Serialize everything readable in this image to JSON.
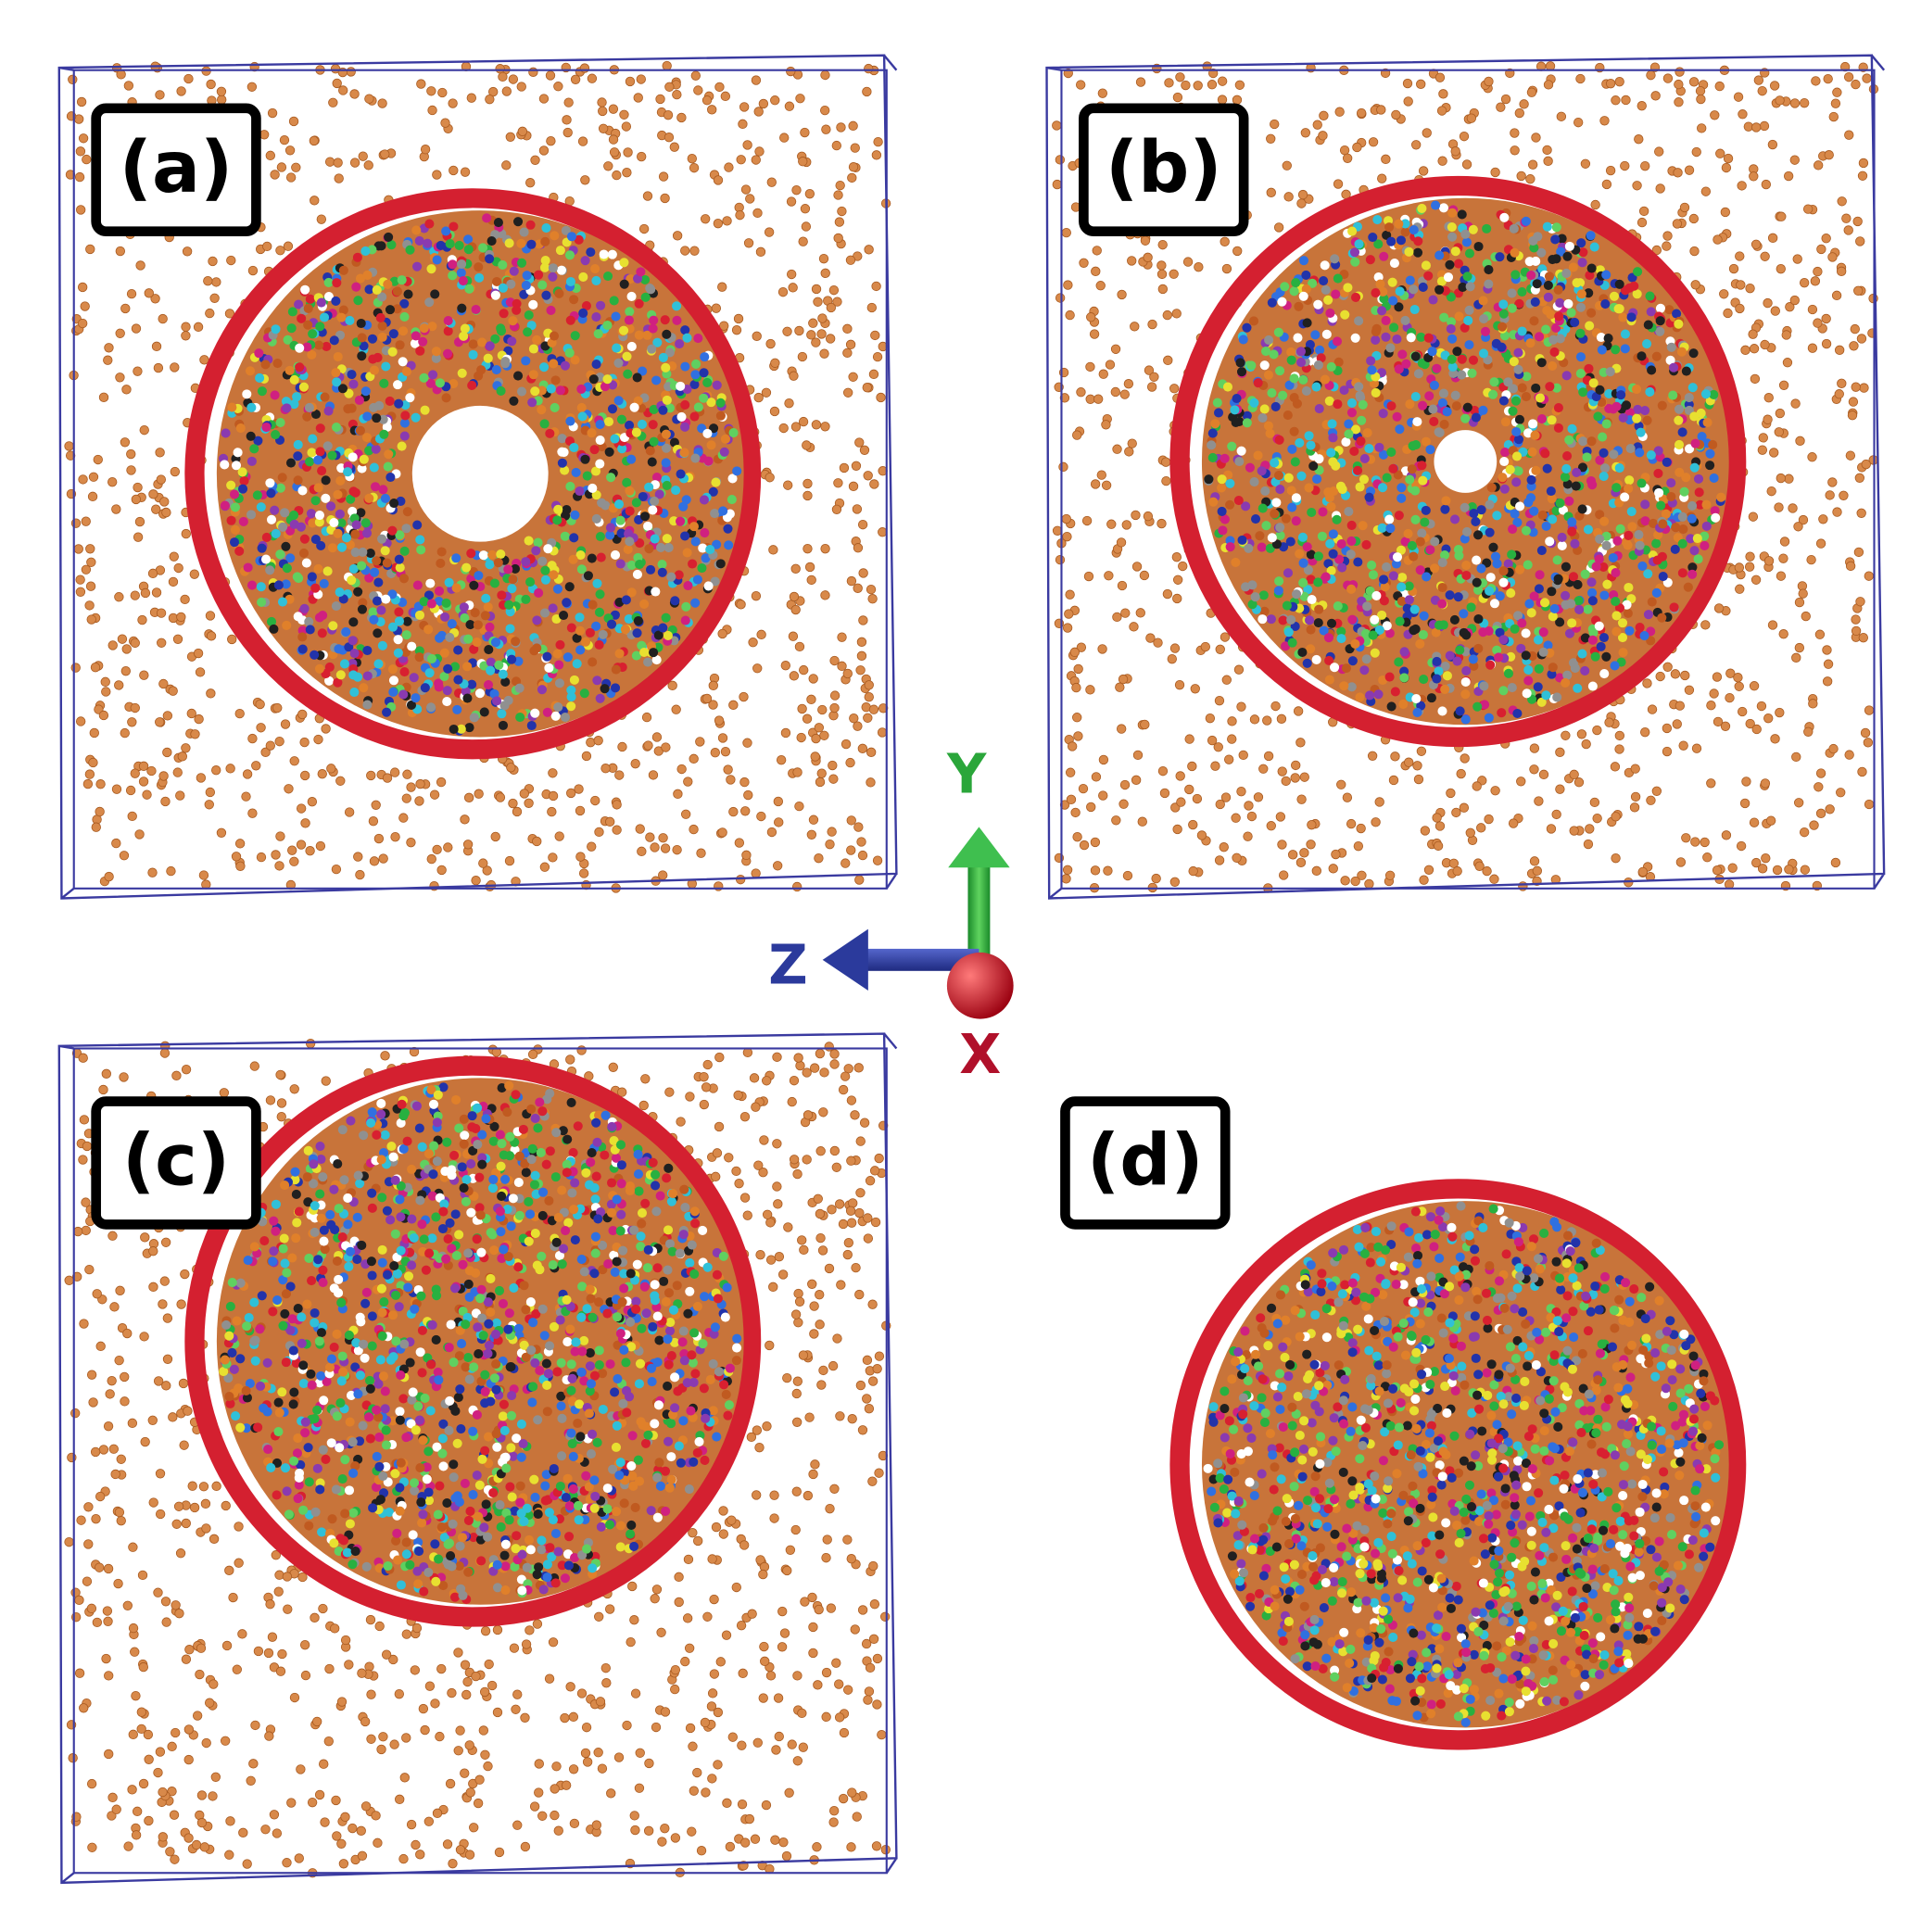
{
  "panels": [
    {
      "label": "(a)"
    },
    {
      "label": "(b)"
    },
    {
      "label": "(c)"
    },
    {
      "label": "(d)"
    }
  ],
  "axes": {
    "y": "Y",
    "z": "Z",
    "x": "X"
  }
}
